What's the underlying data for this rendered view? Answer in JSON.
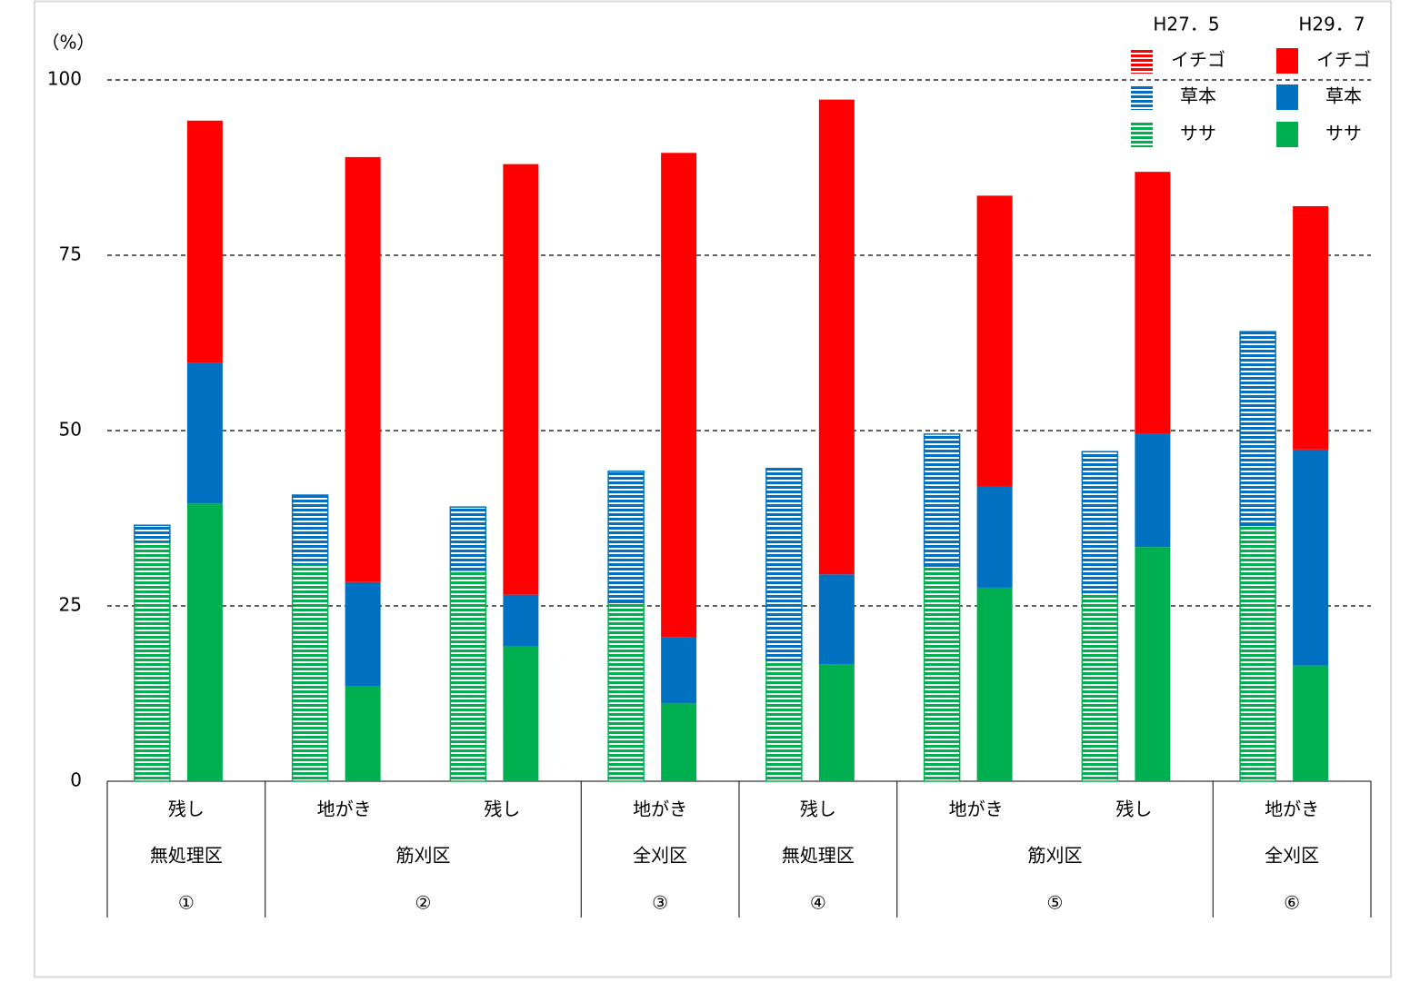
{
  "chart_data": {
    "type": "grouped-stacked-bar",
    "y_label": "（%）",
    "ylim": [
      0,
      100
    ],
    "yticks": [
      0,
      25,
      50,
      75,
      100
    ],
    "grid": true,
    "groups": [
      {
        "name": "無処理区",
        "number": "①",
        "categories": [
          "残し"
        ]
      },
      {
        "name": "筋刈区",
        "number": "②",
        "categories": [
          "地がき",
          "残し"
        ]
      },
      {
        "name": "全刈区",
        "number": "③",
        "categories": [
          "地がき"
        ]
      },
      {
        "name": "無処理区",
        "number": "④",
        "categories": [
          "残し"
        ]
      },
      {
        "name": "筋刈区",
        "number": "⑤",
        "categories": [
          "地がき",
          "残し"
        ]
      },
      {
        "name": "全刈区",
        "number": "⑥",
        "categories": [
          "地がき"
        ]
      }
    ],
    "periods": [
      {
        "name": "H27．5",
        "hatched": true,
        "series": [
          {
            "name": "ササ",
            "color": "#00b050",
            "values": [
              34.2,
              31.0,
              30.1,
              25.5,
              17.2,
              30.7,
              26.9,
              36.5
            ]
          },
          {
            "name": "草本",
            "color": "#0070c0",
            "values": [
              2.3,
              9.8,
              9.0,
              18.7,
              27.4,
              18.8,
              20.1,
              27.6
            ]
          },
          {
            "name": "イチゴ",
            "color": "#ff0000",
            "values": [
              0,
              0,
              0,
              0,
              0,
              0,
              0,
              0
            ]
          }
        ]
      },
      {
        "name": "H29．7",
        "hatched": false,
        "series": [
          {
            "name": "ササ",
            "color": "#00b050",
            "values": [
              39.6,
              13.6,
              19.3,
              11.1,
              16.7,
              27.6,
              33.4,
              16.5
            ]
          },
          {
            "name": "草本",
            "color": "#0070c0",
            "values": [
              20.1,
              14.8,
              7.3,
              9.4,
              12.8,
              14.5,
              16.1,
              30.8
            ]
          },
          {
            "name": "イチゴ",
            "color": "#ff0000",
            "values": [
              34.5,
              60.6,
              61.4,
              69.1,
              67.7,
              41.4,
              37.4,
              34.7
            ]
          }
        ]
      }
    ]
  }
}
